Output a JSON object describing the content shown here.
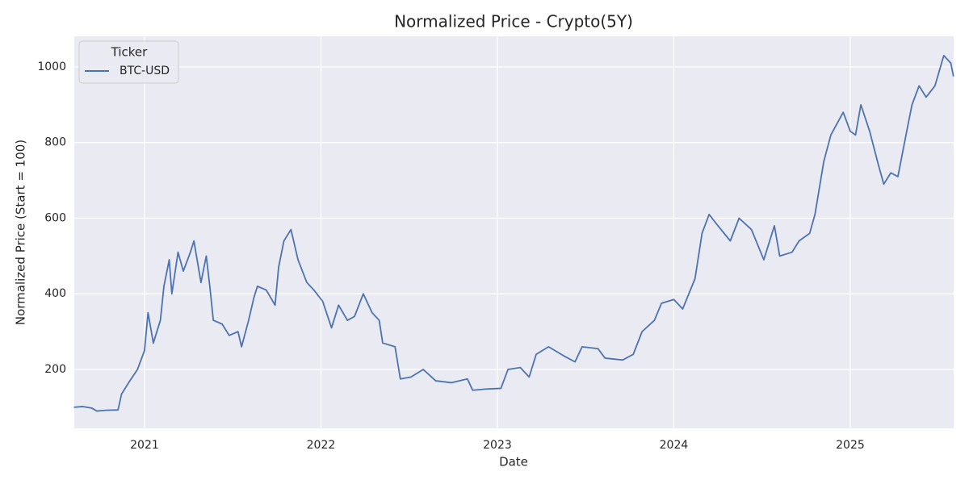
{
  "chart_data": {
    "type": "line",
    "title": "Normalized Price - Crypto(5Y)",
    "xlabel": "Date",
    "ylabel": "Normalized Price (Start = 100)",
    "legend_title": "Ticker",
    "legend_loc": "upper left",
    "grid": true,
    "xlim": [
      2020.602,
      2025.586
    ],
    "ylim": [
      44.3,
      1081
    ],
    "xticks": [
      2021,
      2022,
      2023,
      2024,
      2025
    ],
    "yticks": [
      200,
      400,
      600,
      800,
      1000
    ],
    "x": [
      2020.6,
      2020.65,
      2020.7,
      2020.73,
      2020.78,
      2020.85,
      2020.87,
      2020.91,
      2020.96,
      2021.0,
      2021.02,
      2021.05,
      2021.09,
      2021.11,
      2021.14,
      2021.155,
      2021.19,
      2021.22,
      2021.26,
      2021.28,
      2021.32,
      2021.35,
      2021.37,
      2021.39,
      2021.44,
      2021.48,
      2021.53,
      2021.55,
      2021.59,
      2021.62,
      2021.64,
      2021.69,
      2021.74,
      2021.76,
      2021.79,
      2021.83,
      2021.87,
      2021.92,
      2021.96,
      2022.01,
      2022.06,
      2022.1,
      2022.15,
      2022.19,
      2022.24,
      2022.29,
      2022.33,
      2022.35,
      2022.42,
      2022.45,
      2022.51,
      2022.58,
      2022.65,
      2022.74,
      2022.83,
      2022.86,
      2022.93,
      2023.02,
      2023.06,
      2023.13,
      2023.18,
      2023.22,
      2023.29,
      2023.38,
      2023.44,
      2023.48,
      2023.57,
      2023.61,
      2023.71,
      2023.77,
      2023.82,
      2023.89,
      2023.93,
      2024.0,
      2024.05,
      2024.12,
      2024.16,
      2024.2,
      2024.25,
      2024.32,
      2024.37,
      2024.44,
      2024.51,
      2024.57,
      2024.6,
      2024.67,
      2024.71,
      2024.77,
      2024.8,
      2024.85,
      2024.89,
      2024.96,
      2025.0,
      2025.03,
      2025.06,
      2025.11,
      2025.16,
      2025.19,
      2025.23,
      2025.27,
      2025.32,
      2025.35,
      2025.39,
      2025.43,
      2025.48,
      2025.53,
      2025.57,
      2025.585
    ],
    "series": [
      {
        "name": "BTC-USD",
        "color": "#4c72b0",
        "values": [
          100,
          102,
          98,
          90,
          92,
          93,
          135,
          165,
          200,
          250,
          350,
          270,
          330,
          420,
          490,
          400,
          510,
          460,
          510,
          540,
          430,
          500,
          420,
          330,
          320,
          290,
          300,
          260,
          330,
          390,
          420,
          410,
          370,
          470,
          540,
          570,
          490,
          430,
          410,
          380,
          310,
          370,
          330,
          340,
          400,
          350,
          330,
          270,
          260,
          175,
          180,
          200,
          170,
          165,
          175,
          145,
          148,
          150,
          200,
          205,
          180,
          240,
          260,
          235,
          220,
          260,
          255,
          230,
          225,
          240,
          300,
          330,
          375,
          385,
          360,
          440,
          560,
          610,
          580,
          540,
          600,
          570,
          490,
          580,
          500,
          510,
          540,
          560,
          610,
          750,
          820,
          880,
          830,
          820,
          900,
          830,
          740,
          690,
          720,
          710,
          830,
          900,
          950,
          920,
          950,
          1030,
          1010,
          975
        ]
      }
    ]
  }
}
